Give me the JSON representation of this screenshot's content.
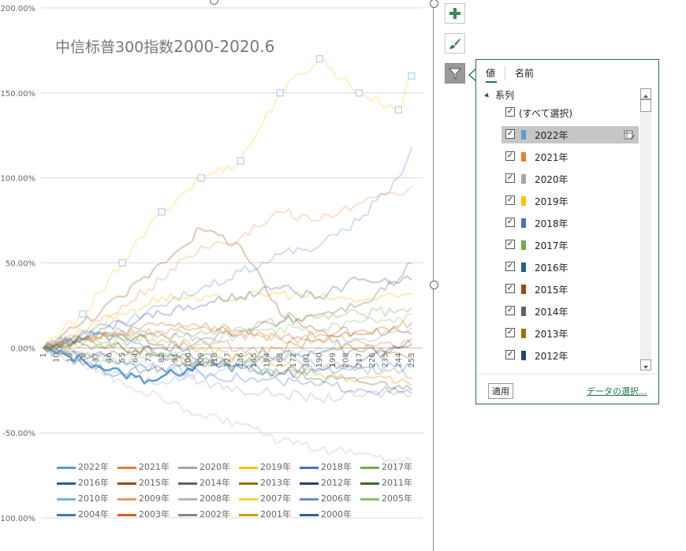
{
  "chart": {
    "title_prefix": "中信标普300指数",
    "title_suffix": "2000-2020.6",
    "y_ticks": [
      "200.00%",
      "150.00%",
      "100.00%",
      "50.00%",
      "0.00%",
      "-50.00%",
      "-100.00%"
    ],
    "x_ticks": [
      "1",
      "10",
      "19",
      "28",
      "37",
      "46",
      "55",
      "64",
      "73",
      "82",
      "91",
      "100",
      "109",
      "118",
      "127",
      "136",
      "145",
      "154",
      "163",
      "172",
      "181",
      "190",
      "199",
      "208",
      "217",
      "226",
      "235",
      "244",
      "253"
    ]
  },
  "chart_data": {
    "type": "line",
    "title": "中信标普300指数2000-2020.6",
    "ylim": [
      -100,
      200
    ],
    "y_unit": "%",
    "x_range": [
      1,
      253
    ],
    "grid": true,
    "legend_placement": "bottom",
    "series": [
      {
        "name": "2022年",
        "color": "#5b9bd5",
        "x": [
          1,
          10,
          19,
          28,
          37,
          46,
          55,
          64,
          73,
          82,
          91,
          100,
          109
        ],
        "y": [
          0,
          -3,
          -5,
          -7,
          -10,
          -13,
          -15,
          -17,
          -19,
          -17,
          -15,
          -12,
          -9
        ]
      },
      {
        "name": "2021年",
        "color": "#ed7d31",
        "x": [
          1,
          28,
          55,
          82,
          109,
          136,
          163,
          190,
          217,
          235,
          253
        ],
        "y": [
          0,
          5,
          8,
          10,
          12,
          8,
          6,
          5,
          4,
          3,
          2
        ]
      },
      {
        "name": "2020年",
        "color": "#a5a5a5",
        "x": [
          1,
          28,
          55,
          82,
          109,
          136,
          163,
          190,
          217,
          244,
          253
        ],
        "y": [
          0,
          -5,
          -8,
          -12,
          -20,
          -25,
          -27,
          -30,
          -28,
          -26,
          -28
        ]
      },
      {
        "name": "2019年",
        "color": "#ffc000",
        "x": [
          1,
          28,
          55,
          82,
          109,
          136,
          163,
          190,
          217,
          244,
          253
        ],
        "y": [
          0,
          10,
          20,
          30,
          28,
          30,
          32,
          30,
          28,
          30,
          32
        ]
      },
      {
        "name": "2018年",
        "color": "#4472c4",
        "x": [
          1,
          28,
          55,
          82,
          109,
          136,
          163,
          190,
          217,
          244,
          253
        ],
        "y": [
          0,
          -3,
          -8,
          -12,
          -15,
          -18,
          -20,
          -22,
          -24,
          -26,
          -27
        ]
      },
      {
        "name": "2017年",
        "color": "#70ad47",
        "x": [
          1,
          28,
          55,
          82,
          109,
          136,
          163,
          190,
          217,
          244,
          253
        ],
        "y": [
          0,
          2,
          5,
          8,
          10,
          12,
          15,
          18,
          20,
          22,
          24
        ]
      },
      {
        "name": "2016年",
        "color": "#255e91",
        "x": [
          1,
          28,
          55,
          82,
          109,
          136,
          163,
          190,
          217,
          244,
          253
        ],
        "y": [
          0,
          -10,
          -15,
          -12,
          -10,
          -8,
          -5,
          -3,
          -2,
          0,
          2
        ]
      },
      {
        "name": "2015年",
        "color": "#9e480e",
        "x": [
          1,
          28,
          55,
          82,
          109,
          136,
          163,
          190,
          217,
          244,
          253
        ],
        "y": [
          0,
          15,
          30,
          50,
          70,
          60,
          20,
          10,
          8,
          10,
          8
        ]
      },
      {
        "name": "2014年",
        "color": "#636363",
        "x": [
          1,
          28,
          55,
          82,
          109,
          136,
          163,
          190,
          217,
          244,
          253
        ],
        "y": [
          0,
          -5,
          -3,
          0,
          5,
          10,
          15,
          20,
          25,
          40,
          50
        ]
      },
      {
        "name": "2013年",
        "color": "#997300",
        "x": [
          1,
          28,
          55,
          82,
          109,
          136,
          163,
          190,
          217,
          244,
          253
        ],
        "y": [
          0,
          5,
          0,
          -5,
          -10,
          -5,
          0,
          5,
          0,
          -3,
          -5
        ]
      },
      {
        "name": "2012年",
        "color": "#264478",
        "x": [
          1,
          28,
          55,
          82,
          109,
          136,
          163,
          190,
          217,
          244,
          253
        ],
        "y": [
          0,
          5,
          8,
          2,
          -5,
          -10,
          -15,
          -12,
          -8,
          0,
          5
        ]
      },
      {
        "name": "2011年",
        "color": "#43682b",
        "x": [
          1,
          28,
          55,
          82,
          109,
          136,
          163,
          190,
          217,
          244,
          253
        ],
        "y": [
          0,
          2,
          0,
          -3,
          -8,
          -12,
          -15,
          -18,
          -20,
          -22,
          -25
        ]
      },
      {
        "name": "2010年",
        "color": "#7cafdd",
        "x": [
          1,
          28,
          55,
          82,
          109,
          136,
          163,
          190,
          217,
          244,
          253
        ],
        "y": [
          0,
          -8,
          -15,
          -20,
          -15,
          -10,
          -5,
          0,
          5,
          10,
          12
        ]
      },
      {
        "name": "2009年",
        "color": "#f1975a",
        "x": [
          1,
          28,
          55,
          82,
          109,
          136,
          163,
          190,
          217,
          244,
          253
        ],
        "y": [
          0,
          10,
          25,
          40,
          60,
          65,
          80,
          75,
          85,
          90,
          95
        ]
      },
      {
        "name": "2008年",
        "color": "#b7b7b7",
        "x": [
          1,
          28,
          55,
          82,
          109,
          136,
          163,
          190,
          217,
          244,
          253
        ],
        "y": [
          0,
          -10,
          -20,
          -30,
          -40,
          -45,
          -55,
          -60,
          -62,
          -65,
          -66
        ]
      },
      {
        "name": "2007年",
        "color": "#ffcd33",
        "x": [
          1,
          28,
          55,
          82,
          109,
          136,
          163,
          190,
          217,
          244,
          253
        ],
        "y": [
          0,
          20,
          50,
          80,
          100,
          110,
          150,
          170,
          150,
          140,
          160
        ]
      },
      {
        "name": "2006年",
        "color": "#698ed0",
        "x": [
          1,
          28,
          55,
          82,
          109,
          136,
          163,
          190,
          217,
          244,
          253
        ],
        "y": [
          0,
          10,
          15,
          25,
          35,
          45,
          55,
          60,
          75,
          100,
          118
        ]
      },
      {
        "name": "2005年",
        "color": "#8cc168",
        "x": [
          1,
          28,
          55,
          82,
          109,
          136,
          163,
          190,
          217,
          244,
          253
        ],
        "y": [
          0,
          -5,
          -8,
          -3,
          2,
          8,
          12,
          10,
          15,
          18,
          20
        ]
      },
      {
        "name": "2004年",
        "color": "#327dc2",
        "x": [
          1,
          28,
          55,
          82,
          109,
          136,
          163,
          190,
          217,
          244,
          253
        ],
        "y": [
          0,
          8,
          5,
          -5,
          -10,
          -12,
          -15,
          -13,
          -12,
          -10,
          -12
        ]
      },
      {
        "name": "2003年",
        "color": "#d26012",
        "x": [
          1,
          28,
          55,
          82,
          109,
          136,
          163,
          190,
          217,
          244,
          253
        ],
        "y": [
          0,
          5,
          10,
          15,
          12,
          10,
          5,
          8,
          10,
          12,
          15
        ]
      },
      {
        "name": "2002年",
        "color": "#848484",
        "x": [
          1,
          28,
          55,
          82,
          109,
          136,
          163,
          190,
          217,
          244,
          253
        ],
        "y": [
          0,
          5,
          10,
          8,
          5,
          0,
          -5,
          -10,
          -12,
          -15,
          -18
        ]
      },
      {
        "name": "2001年",
        "color": "#cc9a00",
        "x": [
          1,
          28,
          55,
          82,
          109,
          136,
          163,
          190,
          217,
          244,
          253
        ],
        "y": [
          0,
          5,
          8,
          5,
          0,
          -5,
          -10,
          -15,
          -18,
          -20,
          -22
        ]
      },
      {
        "name": "2000年",
        "color": "#335aa1",
        "x": [
          1,
          28,
          55,
          82,
          109,
          136,
          163,
          190,
          217,
          244,
          253
        ],
        "y": [
          0,
          5,
          15,
          20,
          25,
          30,
          35,
          30,
          40,
          38,
          40
        ]
      }
    ]
  },
  "legend": [
    {
      "label": "2022年",
      "color": "#5b9bd5"
    },
    {
      "label": "2021年",
      "color": "#ed7d31"
    },
    {
      "label": "2020年",
      "color": "#a5a5a5"
    },
    {
      "label": "2019年",
      "color": "#ffc000"
    },
    {
      "label": "2018年",
      "color": "#4472c4"
    },
    {
      "label": "2017年",
      "color": "#70ad47"
    },
    {
      "label": "2016年",
      "color": "#255e91"
    },
    {
      "label": "2015年",
      "color": "#9e480e"
    },
    {
      "label": "2014年",
      "color": "#636363"
    },
    {
      "label": "2013年",
      "color": "#997300"
    },
    {
      "label": "2012年",
      "color": "#264478"
    },
    {
      "label": "2011年",
      "color": "#43682b"
    },
    {
      "label": "2010年",
      "color": "#7cafdd"
    },
    {
      "label": "2009年",
      "color": "#f1975a"
    },
    {
      "label": "2008年",
      "color": "#b7b7b7"
    },
    {
      "label": "2007年",
      "color": "#ffcd33"
    },
    {
      "label": "2006年",
      "color": "#698ed0"
    },
    {
      "label": "2005年",
      "color": "#8cc168"
    },
    {
      "label": "2004年",
      "color": "#327dc2"
    },
    {
      "label": "2003年",
      "color": "#d26012"
    },
    {
      "label": "2002年",
      "color": "#848484"
    },
    {
      "label": "2001年",
      "color": "#cc9a00"
    },
    {
      "label": "2000年",
      "color": "#335aa1"
    }
  ],
  "side_buttons": [
    {
      "name": "chart-elements-button",
      "icon": "plus-icon"
    },
    {
      "name": "chart-styles-button",
      "icon": "paintbrush-icon"
    },
    {
      "name": "chart-filters-button",
      "icon": "funnel-icon"
    }
  ],
  "filter_panel": {
    "tab_values": "値",
    "tab_names": "名前",
    "tree_label": "系列",
    "select_all": "(すべて選択)",
    "items": [
      {
        "label": "2022年",
        "color": "#5b9bd5",
        "checked": true,
        "selected": true
      },
      {
        "label": "2021年",
        "color": "#ed7d31",
        "checked": true
      },
      {
        "label": "2020年",
        "color": "#a5a5a5",
        "checked": true
      },
      {
        "label": "2019年",
        "color": "#ffc000",
        "checked": true
      },
      {
        "label": "2018年",
        "color": "#4472c4",
        "checked": true
      },
      {
        "label": "2017年",
        "color": "#70ad47",
        "checked": true
      },
      {
        "label": "2016年",
        "color": "#255e91",
        "checked": true
      },
      {
        "label": "2015年",
        "color": "#9e480e",
        "checked": true
      },
      {
        "label": "2014年",
        "color": "#636363",
        "checked": true
      },
      {
        "label": "2013年",
        "color": "#997300",
        "checked": true
      },
      {
        "label": "2012年",
        "color": "#264478",
        "checked": true
      }
    ],
    "apply_label": "適用",
    "select_data_link": "データの選択..."
  }
}
